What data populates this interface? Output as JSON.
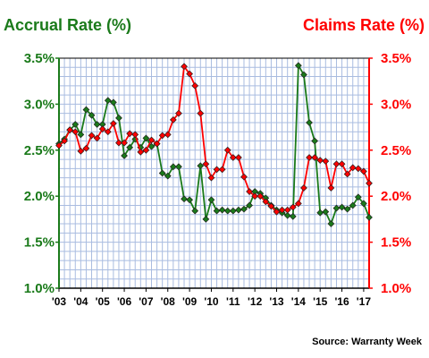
{
  "chart_data": {
    "type": "line",
    "left_axis_title": "Accrual Rate (%)",
    "right_axis_title": "Claims Rate (%)",
    "source": "Source: Warranty Week",
    "y_range": [
      1.0,
      3.5
    ],
    "y_ticks": [
      "1.0%",
      "1.5%",
      "2.0%",
      "2.5%",
      "3.0%",
      "3.5%"
    ],
    "x_range": [
      2003.0,
      2017.25
    ],
    "x_tick_labels": [
      "'03",
      "'04",
      "'05",
      "'06",
      "'07",
      "'08",
      "'09",
      "'10",
      "'11",
      "'12",
      "'13",
      "'14",
      "'15",
      "'16",
      "'17"
    ],
    "grid": true,
    "colors": {
      "accrual": "#1a7a1a",
      "claims": "#ff0000",
      "grid": "#a9bce0",
      "frame": "#000000"
    },
    "series": [
      {
        "axis": "left",
        "x": [
          2003.0,
          2003.25,
          2003.5,
          2003.75,
          2004.0,
          2004.25,
          2004.5,
          2004.75,
          2005.0,
          2005.25,
          2005.5,
          2005.75,
          2006.0,
          2006.25,
          2006.5,
          2006.75,
          2007.0,
          2007.25,
          2007.5,
          2007.75,
          2008.0,
          2008.25,
          2008.5,
          2008.75,
          2009.0,
          2009.25,
          2009.5,
          2009.75,
          2010.0,
          2010.25,
          2010.5,
          2010.75,
          2011.0,
          2011.25,
          2011.5,
          2011.75,
          2012.0,
          2012.25,
          2012.5,
          2012.75,
          2013.0,
          2013.25,
          2013.5,
          2013.75,
          2014.0,
          2014.25,
          2014.5,
          2014.75,
          2015.0,
          2015.25,
          2015.5,
          2015.75,
          2016.0,
          2016.25,
          2016.5,
          2016.75,
          2017.0,
          2017.25
        ],
        "values": [
          2.57,
          2.62,
          2.72,
          2.78,
          2.67,
          2.94,
          2.88,
          2.78,
          2.78,
          3.04,
          3.02,
          2.85,
          2.44,
          2.53,
          2.62,
          2.53,
          2.63,
          2.54,
          2.57,
          2.25,
          2.22,
          2.32,
          2.32,
          1.97,
          1.96,
          1.84,
          2.33,
          1.75,
          1.96,
          1.84,
          1.85,
          1.84,
          1.84,
          1.85,
          1.86,
          1.9,
          2.05,
          2.03,
          1.98,
          1.9,
          1.85,
          1.82,
          1.79,
          1.78,
          3.42,
          3.32,
          2.8,
          2.6,
          1.82,
          1.83,
          1.7,
          1.87,
          1.88,
          1.86,
          1.9,
          1.99,
          1.92,
          1.77
        ]
      },
      {
        "axis": "right",
        "x": [
          2003.0,
          2003.25,
          2003.5,
          2003.75,
          2004.0,
          2004.25,
          2004.5,
          2004.75,
          2005.0,
          2005.25,
          2005.5,
          2005.75,
          2006.0,
          2006.25,
          2006.5,
          2006.75,
          2007.0,
          2007.25,
          2007.5,
          2007.75,
          2008.0,
          2008.25,
          2008.5,
          2008.75,
          2009.0,
          2009.25,
          2009.5,
          2009.75,
          2010.0,
          2010.25,
          2010.5,
          2010.75,
          2011.0,
          2011.25,
          2011.5,
          2011.75,
          2012.0,
          2012.25,
          2012.5,
          2012.75,
          2013.0,
          2013.25,
          2013.5,
          2013.75,
          2014.0,
          2014.25,
          2014.5,
          2014.75,
          2015.0,
          2015.25,
          2015.5,
          2015.75,
          2016.0,
          2016.25,
          2016.5,
          2016.75,
          2017.0,
          2017.25
        ],
        "values": [
          2.55,
          2.6,
          2.72,
          2.7,
          2.49,
          2.52,
          2.66,
          2.63,
          2.73,
          2.7,
          2.79,
          2.58,
          2.58,
          2.68,
          2.67,
          2.48,
          2.5,
          2.61,
          2.57,
          2.66,
          2.67,
          2.83,
          2.9,
          3.41,
          3.33,
          3.2,
          2.9,
          2.35,
          2.2,
          2.29,
          2.29,
          2.5,
          2.42,
          2.42,
          2.21,
          2.05,
          2.0,
          2.0,
          1.94,
          1.89,
          1.83,
          1.85,
          1.85,
          1.88,
          1.92,
          2.09,
          2.42,
          2.42,
          2.39,
          2.38,
          2.09,
          2.35,
          2.35,
          2.24,
          2.31,
          2.3,
          2.27,
          2.14
        ]
      }
    ]
  }
}
